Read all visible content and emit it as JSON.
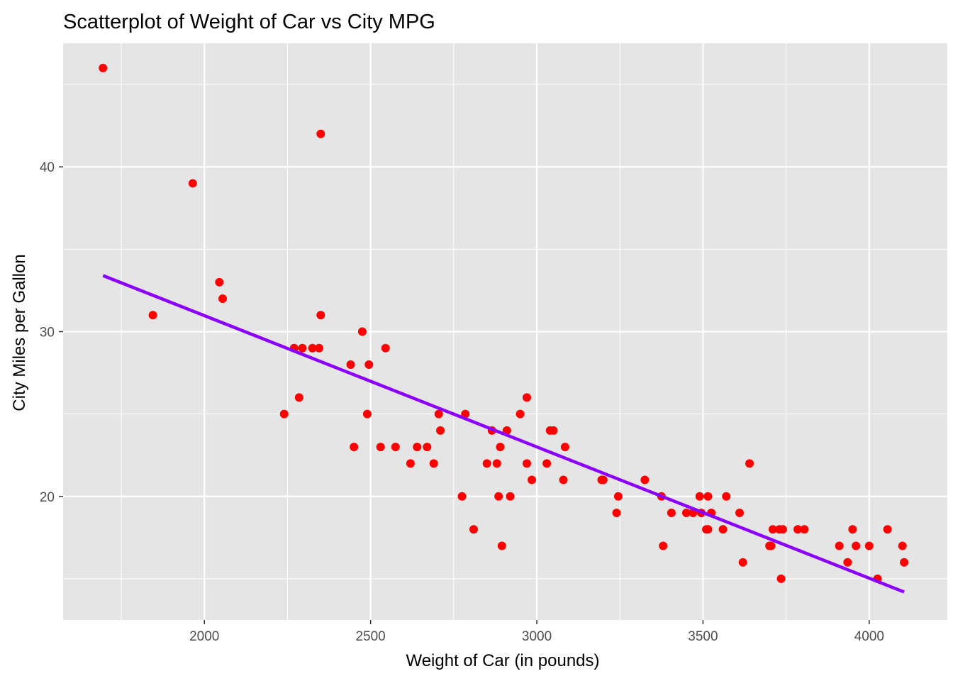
{
  "chart_data": {
    "type": "scatter",
    "title": "Scatterplot of Weight of Car vs City MPG",
    "xlabel": "Weight of Car (in pounds)",
    "ylabel": "City Miles per Gallon",
    "xlim": [
      1575,
      4235
    ],
    "ylim": [
      12.5,
      47.5
    ],
    "x_ticks": [
      2000,
      2500,
      3000,
      3500,
      4000
    ],
    "x_tick_labels": [
      "2000",
      "2500",
      "3000",
      "3500",
      "4000"
    ],
    "y_ticks": [
      20,
      30,
      40
    ],
    "y_tick_labels": [
      "20",
      "30",
      "40"
    ],
    "x_minor_gridlines": [
      1750,
      2250,
      2750,
      3250,
      3750
    ],
    "y_minor_gridlines": [
      15,
      25,
      35,
      45
    ],
    "background": "#e5e5e5",
    "grid_color": "#ffffff",
    "point_color": "#ff0000",
    "line_color": "#8b00ff",
    "trend_line": {
      "x": [
        1695,
        4105
      ],
      "y": [
        33.4,
        14.2
      ]
    },
    "points": [
      {
        "x": 1695,
        "y": 46
      },
      {
        "x": 1845,
        "y": 31
      },
      {
        "x": 1965,
        "y": 39
      },
      {
        "x": 2045,
        "y": 33
      },
      {
        "x": 2055,
        "y": 32
      },
      {
        "x": 2240,
        "y": 25
      },
      {
        "x": 2270,
        "y": 29
      },
      {
        "x": 2285,
        "y": 26
      },
      {
        "x": 2295,
        "y": 29
      },
      {
        "x": 2325,
        "y": 29
      },
      {
        "x": 2345,
        "y": 29
      },
      {
        "x": 2350,
        "y": 42
      },
      {
        "x": 2350,
        "y": 31
      },
      {
        "x": 2440,
        "y": 28
      },
      {
        "x": 2450,
        "y": 23
      },
      {
        "x": 2475,
        "y": 30
      },
      {
        "x": 2490,
        "y": 25
      },
      {
        "x": 2495,
        "y": 28
      },
      {
        "x": 2530,
        "y": 23
      },
      {
        "x": 2545,
        "y": 29
      },
      {
        "x": 2575,
        "y": 23
      },
      {
        "x": 2620,
        "y": 22
      },
      {
        "x": 2640,
        "y": 23
      },
      {
        "x": 2670,
        "y": 23
      },
      {
        "x": 2690,
        "y": 22
      },
      {
        "x": 2705,
        "y": 25
      },
      {
        "x": 2710,
        "y": 24
      },
      {
        "x": 2775,
        "y": 20
      },
      {
        "x": 2785,
        "y": 25
      },
      {
        "x": 2810,
        "y": 18
      },
      {
        "x": 2850,
        "y": 22
      },
      {
        "x": 2865,
        "y": 24
      },
      {
        "x": 2880,
        "y": 22
      },
      {
        "x": 2885,
        "y": 20
      },
      {
        "x": 2890,
        "y": 23
      },
      {
        "x": 2895,
        "y": 17
      },
      {
        "x": 2910,
        "y": 24
      },
      {
        "x": 2920,
        "y": 20
      },
      {
        "x": 2950,
        "y": 25
      },
      {
        "x": 2970,
        "y": 26
      },
      {
        "x": 2970,
        "y": 22
      },
      {
        "x": 2985,
        "y": 21
      },
      {
        "x": 3030,
        "y": 22
      },
      {
        "x": 3040,
        "y": 24
      },
      {
        "x": 3050,
        "y": 24
      },
      {
        "x": 3080,
        "y": 21
      },
      {
        "x": 3085,
        "y": 23
      },
      {
        "x": 3195,
        "y": 21
      },
      {
        "x": 3200,
        "y": 21
      },
      {
        "x": 3240,
        "y": 19
      },
      {
        "x": 3245,
        "y": 20
      },
      {
        "x": 3325,
        "y": 21
      },
      {
        "x": 3375,
        "y": 20
      },
      {
        "x": 3380,
        "y": 17
      },
      {
        "x": 3405,
        "y": 19
      },
      {
        "x": 3450,
        "y": 19
      },
      {
        "x": 3470,
        "y": 19
      },
      {
        "x": 3490,
        "y": 20
      },
      {
        "x": 3495,
        "y": 19
      },
      {
        "x": 3510,
        "y": 18
      },
      {
        "x": 3515,
        "y": 20
      },
      {
        "x": 3515,
        "y": 18
      },
      {
        "x": 3525,
        "y": 19
      },
      {
        "x": 3560,
        "y": 18
      },
      {
        "x": 3570,
        "y": 20
      },
      {
        "x": 3610,
        "y": 19
      },
      {
        "x": 3620,
        "y": 16
      },
      {
        "x": 3640,
        "y": 22
      },
      {
        "x": 3700,
        "y": 17
      },
      {
        "x": 3705,
        "y": 17
      },
      {
        "x": 3710,
        "y": 18
      },
      {
        "x": 3730,
        "y": 18
      },
      {
        "x": 3735,
        "y": 15
      },
      {
        "x": 3740,
        "y": 18
      },
      {
        "x": 3785,
        "y": 18
      },
      {
        "x": 3805,
        "y": 18
      },
      {
        "x": 3910,
        "y": 17
      },
      {
        "x": 3935,
        "y": 16
      },
      {
        "x": 3950,
        "y": 18
      },
      {
        "x": 3960,
        "y": 17
      },
      {
        "x": 4000,
        "y": 17
      },
      {
        "x": 4025,
        "y": 15
      },
      {
        "x": 4055,
        "y": 18
      },
      {
        "x": 4100,
        "y": 17
      },
      {
        "x": 4105,
        "y": 16
      }
    ]
  }
}
